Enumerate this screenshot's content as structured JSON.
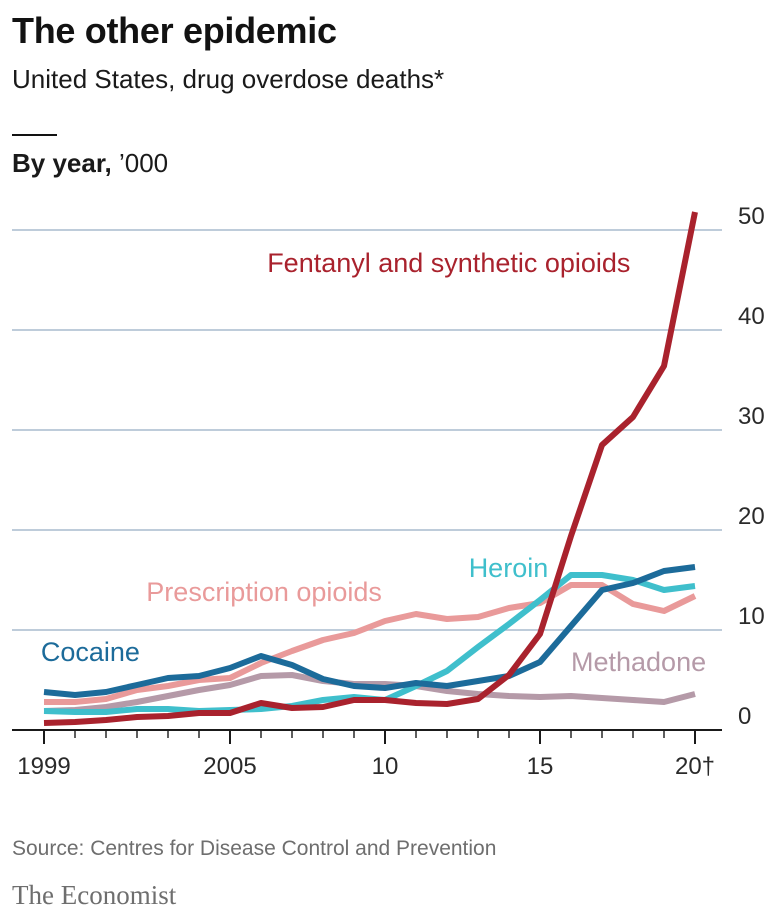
{
  "header": {
    "title": "The other epidemic",
    "subtitle": "United States, drug overdose deaths*",
    "panel_bold": "By year,",
    "panel_unit": " ’000"
  },
  "footer": {
    "source": "Source: Centres for Disease Control and Prevention",
    "brand": "The Economist"
  },
  "colors": {
    "background": "#ffffff",
    "grid": "#a9bccd",
    "axis": "#1a1a1a",
    "tick_text": "#2a2a2a"
  },
  "chart_data": {
    "type": "line",
    "title": "The other epidemic",
    "subtitle": "United States, drug overdose deaths*",
    "ylabel": "’000",
    "xlim": [
      1999,
      2020
    ],
    "ylim": [
      0,
      50
    ],
    "grid": true,
    "x": [
      1999,
      2000,
      2001,
      2002,
      2003,
      2004,
      2005,
      2006,
      2007,
      2008,
      2009,
      2010,
      2011,
      2012,
      2013,
      2014,
      2015,
      2016,
      2017,
      2018,
      2019,
      2020
    ],
    "x_ticks": [
      {
        "value": 1999,
        "label": "1999"
      },
      {
        "value": 2005,
        "label": "2005"
      },
      {
        "value": 2010,
        "label": "10"
      },
      {
        "value": 2015,
        "label": "15"
      },
      {
        "value": 2020,
        "label": "20†"
      }
    ],
    "y_ticks": [
      {
        "value": 0,
        "label": "0"
      },
      {
        "value": 10,
        "label": "10"
      },
      {
        "value": 20,
        "label": "20"
      },
      {
        "value": 30,
        "label": "30"
      },
      {
        "value": 40,
        "label": "40"
      },
      {
        "value": 50,
        "label": "50"
      }
    ],
    "series": [
      {
        "name": "Methadone",
        "color": "#b59aa8",
        "values": [
          1.9,
          2.0,
          2.3,
          2.8,
          3.4,
          4.0,
          4.5,
          5.4,
          5.5,
          4.9,
          4.6,
          4.6,
          4.4,
          3.9,
          3.6,
          3.4,
          3.3,
          3.4,
          3.2,
          3.0,
          2.8,
          3.6
        ]
      },
      {
        "name": "Prescription opioids",
        "color": "#e99a9a",
        "values": [
          2.8,
          2.8,
          3.1,
          4.0,
          4.4,
          5.0,
          5.2,
          6.7,
          7.9,
          9.0,
          9.7,
          10.9,
          11.6,
          11.1,
          11.3,
          12.2,
          12.7,
          14.5,
          14.5,
          12.6,
          11.9,
          13.4
        ]
      },
      {
        "name": "Heroin",
        "color": "#3fbfcc",
        "values": [
          1.9,
          1.8,
          1.8,
          2.1,
          2.1,
          1.9,
          2.0,
          2.1,
          2.4,
          3.0,
          3.3,
          3.0,
          4.4,
          5.9,
          8.3,
          10.6,
          13.0,
          15.5,
          15.5,
          15.0,
          14.0,
          14.4
        ]
      },
      {
        "name": "Cocaine",
        "color": "#1c6b9a",
        "values": [
          3.8,
          3.5,
          3.8,
          4.5,
          5.2,
          5.4,
          6.2,
          7.4,
          6.5,
          5.1,
          4.4,
          4.2,
          4.7,
          4.4,
          4.9,
          5.4,
          6.8,
          10.4,
          14.0,
          14.7,
          15.9,
          16.3
        ]
      },
      {
        "name": "Fentanyl and synthetic opioids",
        "color": "#a9222d",
        "values": [
          0.7,
          0.8,
          1.0,
          1.3,
          1.4,
          1.7,
          1.7,
          2.7,
          2.2,
          2.3,
          3.0,
          3.0,
          2.7,
          2.6,
          3.1,
          5.5,
          9.6,
          19.4,
          28.5,
          31.3,
          36.4,
          51.8
        ]
      }
    ],
    "annotations": [
      {
        "text": "Fentanyl and synthetic opioids",
        "series": "Fentanyl and synthetic opioids",
        "x": 2006.2,
        "y": 45.8
      },
      {
        "text": "Heroin",
        "series": "Heroin",
        "x": 2012.7,
        "y": 15.3
      },
      {
        "text": "Prescription opioids",
        "series": "Prescription opioids",
        "x": 2002.3,
        "y": 12.9
      },
      {
        "text": "Cocaine",
        "series": "Cocaine",
        "x": 1998.9,
        "y": 6.9
      },
      {
        "text": "Methadone",
        "series": "Methadone",
        "x": 2016.0,
        "y": 5.9
      }
    ]
  }
}
